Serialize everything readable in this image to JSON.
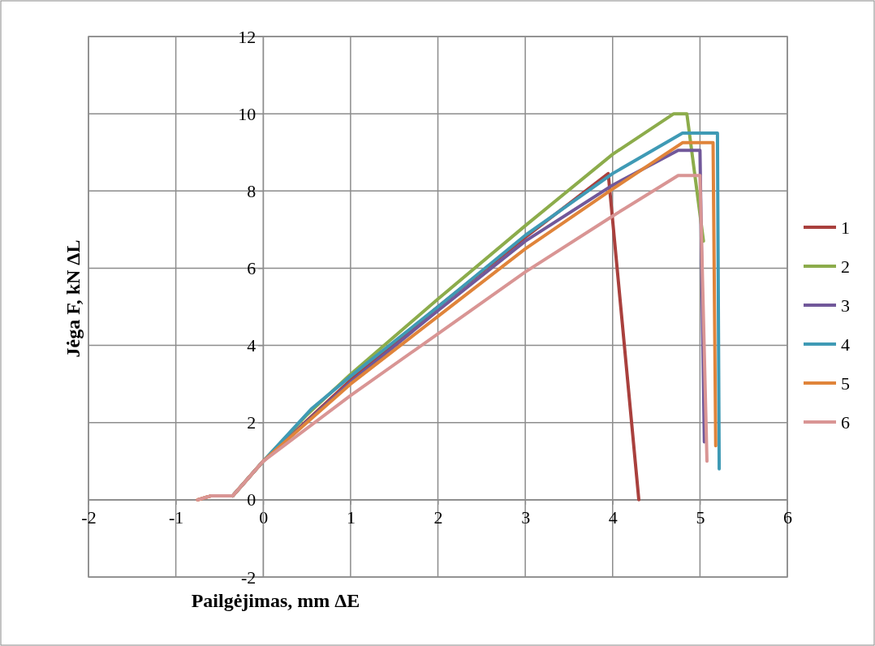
{
  "chart_data": {
    "type": "line",
    "xlabel": "Pailgėjimas, mm ΔE",
    "ylabel": "Jėga F, kN ΔL",
    "xlim": [
      -2,
      6
    ],
    "ylim": [
      -2,
      12
    ],
    "xticks": [
      -2,
      -1,
      0,
      1,
      2,
      3,
      4,
      5,
      6
    ],
    "yticks": [
      -2,
      0,
      2,
      4,
      6,
      8,
      10,
      12
    ],
    "grid": true,
    "legend": "right",
    "marker": "none",
    "line_style": "solid",
    "series": [
      {
        "name": "1",
        "color": "#a9403d",
        "x": [
          -0.75,
          -0.6,
          -0.35,
          0,
          1,
          2,
          3,
          3.95,
          4.3
        ],
        "values": [
          0,
          0.1,
          0.1,
          1,
          3.1,
          5,
          6.8,
          8.45,
          0
        ]
      },
      {
        "name": "2",
        "color": "#8cac4b",
        "x": [
          -0.35,
          0,
          0.5,
          1,
          2,
          3,
          4,
          4.7,
          4.85,
          5.04
        ],
        "values": [
          0.1,
          1,
          2.2,
          3.25,
          5.2,
          7.1,
          8.95,
          10,
          10,
          6.7
        ]
      },
      {
        "name": "3",
        "color": "#71589a",
        "x": [
          -0.35,
          0,
          1,
          2,
          3,
          4,
          4.75,
          5,
          5.05
        ],
        "values": [
          0.1,
          1,
          3.05,
          4.9,
          6.7,
          8.15,
          9.05,
          9.05,
          1.5
        ]
      },
      {
        "name": "4",
        "color": "#3f9ab5",
        "x": [
          -0.35,
          0,
          0.55,
          1,
          2,
          3,
          4,
          4.8,
          5.2,
          5.22
        ],
        "values": [
          0.1,
          1,
          2.35,
          3.2,
          5,
          6.85,
          8.45,
          9.5,
          9.5,
          0.8
        ]
      },
      {
        "name": "5",
        "color": "#e0843a",
        "x": [
          -0.75,
          -0.6,
          -0.35,
          0,
          1,
          2,
          3,
          4,
          4.8,
          5.15,
          5.18
        ],
        "values": [
          0,
          0.1,
          0.1,
          1,
          3,
          4.75,
          6.5,
          8.05,
          9.25,
          9.25,
          1.4
        ]
      },
      {
        "name": "6",
        "color": "#d99594",
        "x": [
          -0.75,
          -0.6,
          -0.35,
          0,
          1,
          2,
          3,
          4,
          4.75,
          5,
          5.08
        ],
        "values": [
          0,
          0.1,
          0.1,
          1,
          2.7,
          4.3,
          5.9,
          7.35,
          8.4,
          8.4,
          1
        ]
      }
    ]
  }
}
